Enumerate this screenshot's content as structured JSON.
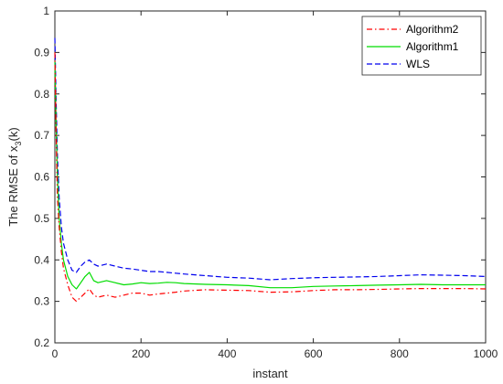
{
  "chart_data": {
    "type": "line",
    "xlabel": "instant",
    "ylabel_main": "The RMSE of x",
    "ylabel_sub": "3",
    "ylabel_tail": "(k)",
    "xlim": [
      0,
      1000
    ],
    "ylim": [
      0.2,
      1.0
    ],
    "xticks": [
      0,
      200,
      400,
      600,
      800,
      1000
    ],
    "yticks": [
      0.2,
      0.3,
      0.4,
      0.5,
      0.6,
      0.7,
      0.8,
      0.9,
      1.0
    ],
    "xtick_labels": [
      "0",
      "200",
      "400",
      "600",
      "800",
      "1000"
    ],
    "ytick_labels": [
      "0.2",
      "0.3",
      "0.4",
      "0.5",
      "0.6",
      "0.7",
      "0.8",
      "0.9",
      "1"
    ],
    "grid": false,
    "legend_position": "top-right",
    "series": [
      {
        "name": "Algorithm2",
        "color": "#ff0000",
        "dash": "dash-dot",
        "points": [
          [
            0,
            0.9
          ],
          [
            3,
            0.7
          ],
          [
            6,
            0.55
          ],
          [
            10,
            0.48
          ],
          [
            15,
            0.42
          ],
          [
            20,
            0.38
          ],
          [
            30,
            0.34
          ],
          [
            40,
            0.31
          ],
          [
            50,
            0.3
          ],
          [
            60,
            0.31
          ],
          [
            70,
            0.32
          ],
          [
            80,
            0.33
          ],
          [
            90,
            0.315
          ],
          [
            100,
            0.31
          ],
          [
            120,
            0.315
          ],
          [
            140,
            0.31
          ],
          [
            160,
            0.315
          ],
          [
            180,
            0.32
          ],
          [
            200,
            0.32
          ],
          [
            220,
            0.315
          ],
          [
            240,
            0.318
          ],
          [
            260,
            0.32
          ],
          [
            280,
            0.322
          ],
          [
            300,
            0.325
          ],
          [
            350,
            0.328
          ],
          [
            400,
            0.327
          ],
          [
            450,
            0.326
          ],
          [
            500,
            0.322
          ],
          [
            550,
            0.323
          ],
          [
            600,
            0.326
          ],
          [
            650,
            0.328
          ],
          [
            700,
            0.328
          ],
          [
            750,
            0.329
          ],
          [
            800,
            0.33
          ],
          [
            850,
            0.331
          ],
          [
            900,
            0.331
          ],
          [
            950,
            0.331
          ],
          [
            1000,
            0.33
          ]
        ]
      },
      {
        "name": "Algorithm1",
        "color": "#00dd00",
        "dash": "solid",
        "points": [
          [
            0,
            0.88
          ],
          [
            3,
            0.72
          ],
          [
            6,
            0.6
          ],
          [
            10,
            0.5
          ],
          [
            15,
            0.44
          ],
          [
            20,
            0.4
          ],
          [
            30,
            0.36
          ],
          [
            40,
            0.34
          ],
          [
            50,
            0.33
          ],
          [
            60,
            0.345
          ],
          [
            70,
            0.36
          ],
          [
            80,
            0.37
          ],
          [
            90,
            0.35
          ],
          [
            100,
            0.345
          ],
          [
            120,
            0.35
          ],
          [
            140,
            0.345
          ],
          [
            160,
            0.34
          ],
          [
            180,
            0.342
          ],
          [
            200,
            0.345
          ],
          [
            220,
            0.343
          ],
          [
            240,
            0.344
          ],
          [
            260,
            0.346
          ],
          [
            280,
            0.345
          ],
          [
            300,
            0.343
          ],
          [
            350,
            0.341
          ],
          [
            400,
            0.34
          ],
          [
            450,
            0.338
          ],
          [
            500,
            0.333
          ],
          [
            550,
            0.333
          ],
          [
            600,
            0.336
          ],
          [
            650,
            0.337
          ],
          [
            700,
            0.338
          ],
          [
            750,
            0.339
          ],
          [
            800,
            0.34
          ],
          [
            850,
            0.341
          ],
          [
            900,
            0.34
          ],
          [
            950,
            0.34
          ],
          [
            1000,
            0.34
          ]
        ]
      },
      {
        "name": "WLS",
        "color": "#0000ee",
        "dash": "dashed",
        "points": [
          [
            0,
            0.935
          ],
          [
            3,
            0.78
          ],
          [
            6,
            0.65
          ],
          [
            10,
            0.55
          ],
          [
            15,
            0.48
          ],
          [
            20,
            0.44
          ],
          [
            30,
            0.4
          ],
          [
            40,
            0.375
          ],
          [
            50,
            0.37
          ],
          [
            60,
            0.385
          ],
          [
            70,
            0.395
          ],
          [
            80,
            0.4
          ],
          [
            90,
            0.39
          ],
          [
            100,
            0.385
          ],
          [
            120,
            0.39
          ],
          [
            140,
            0.385
          ],
          [
            160,
            0.38
          ],
          [
            180,
            0.378
          ],
          [
            200,
            0.375
          ],
          [
            220,
            0.372
          ],
          [
            240,
            0.372
          ],
          [
            260,
            0.37
          ],
          [
            280,
            0.368
          ],
          [
            300,
            0.366
          ],
          [
            350,
            0.362
          ],
          [
            400,
            0.358
          ],
          [
            450,
            0.356
          ],
          [
            500,
            0.352
          ],
          [
            550,
            0.355
          ],
          [
            600,
            0.357
          ],
          [
            650,
            0.358
          ],
          [
            700,
            0.359
          ],
          [
            750,
            0.36
          ],
          [
            800,
            0.362
          ],
          [
            850,
            0.364
          ],
          [
            900,
            0.363
          ],
          [
            950,
            0.362
          ],
          [
            1000,
            0.36
          ]
        ]
      }
    ]
  }
}
